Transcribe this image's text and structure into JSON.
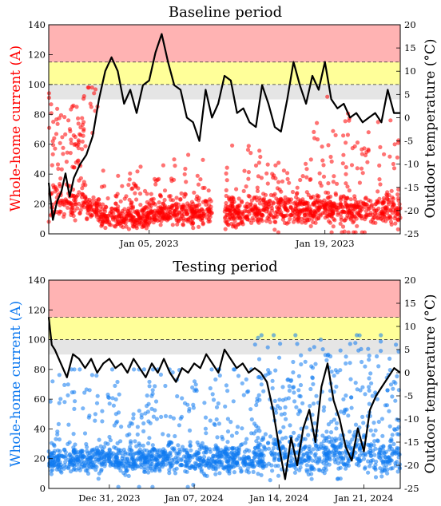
{
  "colors": {
    "baseline": "#ff0000",
    "testing": "#0f7af0",
    "temperature": "#000000",
    "red_band": "#ffb3b3",
    "yellow_band": "#ffff99",
    "gray_band": "#e5e5e5"
  },
  "chart_data": [
    {
      "type": "scatter",
      "title": "Baseline period",
      "ylabel": "Whole-home current (A)",
      "ylabel_right": "Outdoor temperature (°C)",
      "ylim": [
        0,
        140
      ],
      "ylim_right": [
        -25,
        20
      ],
      "yticks": [
        "0",
        "20",
        "40",
        "60",
        "80",
        "100",
        "120",
        "140"
      ],
      "yticks_right": [
        "-25",
        "-20",
        "-15",
        "-10",
        "-5",
        "0",
        "5",
        "10",
        "15",
        "20"
      ],
      "xlim": [
        "2022-12-28",
        "2023-01-25"
      ],
      "xtick_labels": [
        {
          "date": "2023-01-05",
          "label": "Jan 05, 2023"
        },
        {
          "date": "2023-01-19",
          "label": "Jan 19, 2023"
        }
      ],
      "bands_current": [
        {
          "from": 90,
          "to": 100,
          "color": "gray"
        },
        {
          "from": 100,
          "to": 115,
          "color": "yellow"
        },
        {
          "from": 115,
          "to": 140,
          "color": "red"
        }
      ],
      "grid": false,
      "series": [
        {
          "type": "scatter",
          "axis": "left",
          "color": "#ff0000",
          "segments": [
            {
              "start": "2022-12-28",
              "end": "2022-12-31",
              "base": 22,
              "spread": 6,
              "high_base": 62,
              "high_spread": 14,
              "high_frac": 0.45,
              "max": 98
            },
            {
              "start": "2022-12-31",
              "end": "2023-01-01",
              "base": 18,
              "spread": 4,
              "high_base": 75,
              "high_spread": 20,
              "high_frac": 0.12,
              "max": 98
            },
            {
              "start": "2023-01-01",
              "end": "2023-01-05",
              "base": 11,
              "spread": 4,
              "high_base": 28,
              "high_spread": 8,
              "high_frac": 0.12,
              "max": 45
            },
            {
              "start": "2023-01-05",
              "end": "2023-01-10",
              "base": 14,
              "spread": 4,
              "high_base": 28,
              "high_spread": 10,
              "high_frac": 0.18,
              "max": 100
            },
            {
              "start": "2023-01-11",
              "end": "2023-01-18",
              "base": 16,
              "spread": 5,
              "high_base": 32,
              "high_spread": 14,
              "high_frac": 0.2,
              "max": 120
            },
            {
              "start": "2023-01-18",
              "end": "2023-01-25",
              "base": 16,
              "spread": 5,
              "high_base": 40,
              "high_spread": 22,
              "high_frac": 0.25,
              "max": 128
            }
          ]
        },
        {
          "type": "line",
          "axis": "right",
          "color": "#000000",
          "x": [
            "2022-12-28",
            "2022-12-28T08",
            "2022-12-28T16",
            "2022-12-29",
            "2022-12-29T08",
            "2022-12-29T16",
            "2022-12-30",
            "2022-12-30T12",
            "2022-12-31",
            "2022-12-31T12",
            "2023-01-01",
            "2023-01-01T12",
            "2023-01-02",
            "2023-01-02T12",
            "2023-01-03",
            "2023-01-03T12",
            "2023-01-04",
            "2023-01-04T12",
            "2023-01-05",
            "2023-01-05T12",
            "2023-01-06",
            "2023-01-06T12",
            "2023-01-07",
            "2023-01-07T12",
            "2023-01-08",
            "2023-01-08T12",
            "2023-01-09",
            "2023-01-09T12",
            "2023-01-10",
            "2023-01-10T12",
            "2023-01-11",
            "2023-01-11T12",
            "2023-01-12",
            "2023-01-12T12",
            "2023-01-13",
            "2023-01-13T12",
            "2023-01-14",
            "2023-01-14T12",
            "2023-01-15",
            "2023-01-15T12",
            "2023-01-16",
            "2023-01-16T12",
            "2023-01-17",
            "2023-01-17T12",
            "2023-01-18",
            "2023-01-18T12",
            "2023-01-19",
            "2023-01-19T12",
            "2023-01-20",
            "2023-01-20T12",
            "2023-01-21",
            "2023-01-21T12",
            "2023-01-22",
            "2023-01-22T12",
            "2023-01-23",
            "2023-01-23T12",
            "2023-01-24",
            "2023-01-24T12",
            "2023-01-25"
          ],
          "values": [
            -14,
            -22,
            -18,
            -16,
            -12,
            -17,
            -13,
            -10,
            -8,
            -4,
            4,
            10,
            13,
            10,
            3,
            6,
            1,
            7,
            8,
            14,
            18,
            12,
            7,
            6,
            0,
            -1,
            -5,
            6,
            0,
            3,
            9,
            8,
            1,
            2,
            -1,
            -2,
            7,
            3,
            -2,
            -3,
            4,
            12,
            7,
            3,
            9,
            6,
            12,
            4,
            2,
            3,
            0,
            1,
            -1,
            0,
            1,
            -1,
            6,
            1,
            1
          ]
        }
      ]
    },
    {
      "type": "scatter",
      "title": "Testing period",
      "ylabel": "Whole-home current (A)",
      "ylabel_right": "Outdoor temperature (°C)",
      "ylim": [
        0,
        140
      ],
      "ylim_right": [
        -25,
        20
      ],
      "yticks": [
        "0",
        "20",
        "40",
        "60",
        "80",
        "100",
        "120",
        "140"
      ],
      "yticks_right": [
        "-25",
        "-20",
        "-15",
        "-10",
        "-5",
        "0",
        "5",
        "10",
        "15",
        "20"
      ],
      "xlim": [
        "2023-12-26",
        "2024-01-24"
      ],
      "xtick_labels": [
        {
          "date": "2023-12-31",
          "label": "Dec 31, 2023"
        },
        {
          "date": "2024-01-07",
          "label": "Jan 07, 2024"
        },
        {
          "date": "2024-01-14",
          "label": "Jan 14, 2024"
        },
        {
          "date": "2024-01-21",
          "label": "Jan 21, 2024"
        }
      ],
      "bands_current": [
        {
          "from": 90,
          "to": 100,
          "color": "gray"
        },
        {
          "from": 100,
          "to": 115,
          "color": "yellow"
        },
        {
          "from": 115,
          "to": 140,
          "color": "red"
        }
      ],
      "grid": false,
      "series": [
        {
          "type": "scatter",
          "axis": "left",
          "color": "#0f7af0",
          "segments": [
            {
              "start": "2023-12-26",
              "end": "2024-01-12",
              "base": 20,
              "spread": 5,
              "high_base": 50,
              "high_spread": 22,
              "high_frac": 0.2,
              "max": 80
            },
            {
              "start": "2024-01-12",
              "end": "2024-01-24",
              "base": 24,
              "spread": 7,
              "high_base": 62,
              "high_spread": 20,
              "high_frac": 0.3,
              "max": 103
            }
          ]
        },
        {
          "type": "line",
          "axis": "right",
          "color": "#000000",
          "x": [
            "2023-12-26",
            "2023-12-26T06",
            "2023-12-26T12",
            "2023-12-27",
            "2023-12-27T12",
            "2023-12-28",
            "2023-12-28T12",
            "2023-12-29",
            "2023-12-29T12",
            "2023-12-30",
            "2023-12-30T12",
            "2023-12-31",
            "2023-12-31T12",
            "2024-01-01",
            "2024-01-01T12",
            "2024-01-02",
            "2024-01-02T12",
            "2024-01-03",
            "2024-01-03T12",
            "2024-01-04",
            "2024-01-04T12",
            "2024-01-05",
            "2024-01-05T12",
            "2024-01-06",
            "2024-01-06T12",
            "2024-01-07",
            "2024-01-07T12",
            "2024-01-08",
            "2024-01-08T12",
            "2024-01-09",
            "2024-01-09T12",
            "2024-01-10",
            "2024-01-10T12",
            "2024-01-11",
            "2024-01-11T12",
            "2024-01-12",
            "2024-01-12T12",
            "2024-01-13",
            "2024-01-13T12",
            "2024-01-14",
            "2024-01-14T12",
            "2024-01-15",
            "2024-01-15T12",
            "2024-01-16",
            "2024-01-16T12",
            "2024-01-17",
            "2024-01-17T12",
            "2024-01-18",
            "2024-01-18T12",
            "2024-01-19",
            "2024-01-19T12",
            "2024-01-20",
            "2024-01-20T12",
            "2024-01-21",
            "2024-01-21T12",
            "2024-01-22",
            "2024-01-22T12",
            "2024-01-23",
            "2024-01-23T12",
            "2024-01-24"
          ],
          "values": [
            12,
            6,
            5,
            2,
            -1,
            4,
            3,
            1,
            3,
            0,
            2,
            3,
            1,
            2,
            0,
            3,
            1,
            -1,
            2,
            0,
            3,
            0,
            -2,
            1,
            0,
            2,
            1,
            4,
            2,
            0,
            5,
            3,
            1,
            2,
            0,
            1,
            0,
            -2,
            -8,
            -16,
            -23,
            -14,
            -20,
            -12,
            -8,
            -15,
            -3,
            2,
            -6,
            -10,
            -16,
            -19,
            -12,
            -17,
            -8,
            -5,
            -3,
            -1,
            1,
            0
          ]
        }
      ]
    }
  ]
}
